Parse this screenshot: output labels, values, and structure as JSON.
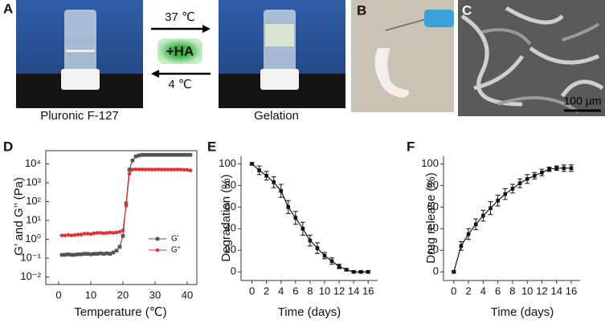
{
  "panels": {
    "a": {
      "label": "A",
      "left_caption": "Pluronic F-127",
      "right_caption": "Gelation",
      "heat": "37 ℃",
      "additive": "+HA",
      "cool": "4 ℃"
    },
    "b": {
      "label": "B"
    },
    "c": {
      "label": "C",
      "scale_bar": "100 μm"
    },
    "d": {
      "label": "D"
    },
    "e": {
      "label": "E"
    },
    "f": {
      "label": "F"
    }
  },
  "chart_data": [
    {
      "type": "line",
      "x_label": "Temperature (℃)",
      "y_label": "G’ and G’’ (Pa)",
      "log_y": true,
      "frame": true,
      "legend": "lower right",
      "x": [
        1,
        2,
        3,
        4,
        5,
        6,
        7,
        8,
        9,
        10,
        11,
        12,
        13,
        14,
        15,
        16,
        17,
        18,
        19,
        20,
        21,
        22,
        23,
        24,
        25,
        26,
        27,
        28,
        29,
        30,
        31,
        32,
        33,
        34,
        35,
        36,
        37,
        38,
        39,
        40,
        41
      ],
      "series": [
        {
          "name": "G'",
          "color": "#555555",
          "marker": "square",
          "values": [
            0.15,
            0.15,
            0.16,
            0.15,
            0.15,
            0.16,
            0.16,
            0.17,
            0.17,
            0.16,
            0.17,
            0.17,
            0.18,
            0.17,
            0.18,
            0.17,
            0.2,
            0.25,
            0.4,
            1.5,
            80,
            5000,
            15000,
            25000,
            28000,
            30000,
            30000,
            30000,
            30000,
            30000,
            30000,
            30000,
            30000,
            30000,
            30000,
            30000,
            30000,
            30000,
            30000,
            30000,
            30000
          ]
        },
        {
          "name": "G''",
          "color": "#e03030",
          "marker": "circle",
          "values": [
            1.6,
            1.6,
            1.7,
            1.6,
            1.7,
            1.8,
            1.8,
            2,
            2,
            1.9,
            2.1,
            2.2,
            2.2,
            2.1,
            2.2,
            2.3,
            2.2,
            2.3,
            2.5,
            3,
            60,
            3000,
            5000,
            5200,
            5100,
            5100,
            5000,
            5100,
            5000,
            5000,
            5100,
            5000,
            5000,
            5000,
            5000,
            5000,
            5000,
            5000,
            4900,
            4800,
            4500
          ]
        }
      ],
      "xlim": [
        -4,
        43
      ],
      "xticks": [
        0,
        10,
        20,
        30,
        40
      ],
      "ylim": [
        0.004,
        50000
      ],
      "yticks": [
        {
          "value": 0.01,
          "label": "10⁻²"
        },
        {
          "value": 0.1,
          "label": "10⁻¹"
        },
        {
          "value": 1,
          "label": "10⁰"
        },
        {
          "value": 10,
          "label": "10¹"
        },
        {
          "value": 100,
          "label": "10²"
        },
        {
          "value": 1000,
          "label": "10³"
        },
        {
          "value": 10000,
          "label": "10⁴"
        }
      ]
    },
    {
      "type": "line",
      "x_label": "Time (days)",
      "y_label": "Degradation (%)",
      "color": "#111111",
      "marker": "square",
      "x": [
        0,
        1,
        2,
        3,
        4,
        5,
        6,
        7,
        8,
        9,
        10,
        11,
        12,
        13,
        14,
        15,
        16
      ],
      "values": [
        100,
        94,
        89,
        83,
        75,
        60,
        50,
        40,
        29,
        22,
        15,
        10,
        5,
        2,
        0,
        0,
        0
      ],
      "errors": [
        1,
        4,
        4,
        5,
        6,
        6,
        6,
        6,
        5,
        5,
        3,
        3,
        2,
        1,
        1,
        1,
        1
      ],
      "xlim": [
        -1.5,
        17.3
      ],
      "xticks": [
        0,
        2,
        4,
        6,
        8,
        10,
        12,
        14,
        16
      ],
      "ylim": [
        -8,
        107
      ],
      "yticks": [
        0,
        20,
        40,
        60,
        80,
        100
      ]
    },
    {
      "type": "line",
      "x_label": "Time (days)",
      "y_label": "Drug release  (%)",
      "color": "#111111",
      "marker": "square",
      "x": [
        0,
        1,
        2,
        3,
        4,
        5,
        6,
        7,
        8,
        9,
        10,
        11,
        12,
        13,
        14,
        15,
        16
      ],
      "values": [
        0,
        24,
        35,
        44,
        52,
        59,
        66,
        72,
        77,
        82,
        86,
        89,
        92,
        95,
        96,
        96,
        96
      ],
      "errors": [
        1,
        4,
        5,
        5,
        5,
        6,
        5,
        5,
        4,
        4,
        4,
        3,
        3,
        2,
        2,
        3,
        3
      ],
      "xlim": [
        -1.4,
        17.2
      ],
      "xticks": [
        0,
        2,
        4,
        6,
        8,
        10,
        12,
        14,
        16
      ],
      "ylim": [
        -8,
        107
      ],
      "yticks": [
        0,
        20,
        40,
        60,
        80,
        100
      ]
    }
  ]
}
